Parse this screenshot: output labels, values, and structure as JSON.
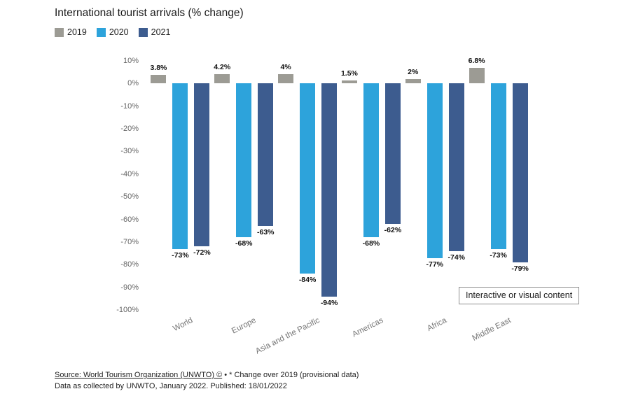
{
  "title": "International tourist arrivals (% change)",
  "chart_data": {
    "type": "bar",
    "title": "International tourist arrivals (% change)",
    "categories": [
      "World",
      "Europe",
      "Asia and the Pacific",
      "Americas",
      "Africa",
      "Middle East"
    ],
    "series": [
      {
        "name": "2019",
        "color": "#9c9b94",
        "values": [
          3.8,
          4.2,
          4,
          1.5,
          2,
          6.8
        ],
        "labels": [
          "3.8%",
          "4.2%",
          "4%",
          "1.5%",
          "2%",
          "6.8%"
        ]
      },
      {
        "name": "2020",
        "color": "#2da3db",
        "values": [
          -73,
          -68,
          -84,
          -68,
          -77,
          -73
        ],
        "labels": [
          "-73%",
          "-68%",
          "-84%",
          "-68%",
          "-77%",
          "-73%"
        ]
      },
      {
        "name": "2021",
        "color": "#3d5c8f",
        "values": [
          -72,
          -63,
          -94,
          -62,
          -74,
          -79
        ],
        "labels": [
          "-72%",
          "-63%",
          "-94%",
          "-62%",
          "-74%",
          "-79%"
        ]
      }
    ],
    "ylim": [
      -100,
      10
    ],
    "ytick_step": 10,
    "yticks": [
      "10%",
      "0%",
      "-10%",
      "-20%",
      "-30%",
      "-40%",
      "-50%",
      "-60%",
      "-70%",
      "-80%",
      "-90%",
      "-100%"
    ],
    "xlabel": "",
    "ylabel": "",
    "grid": false,
    "legend_position": "top-left"
  },
  "overlay": {
    "label": "Interactive or visual content"
  },
  "footer": {
    "source": "Source: World Tourism Organization (UNWTO) ©",
    "note": " • * Change over 2019 (provisional data)",
    "line2": "Data as collected by UNWTO, January 2022. Published: 18/01/2022"
  }
}
